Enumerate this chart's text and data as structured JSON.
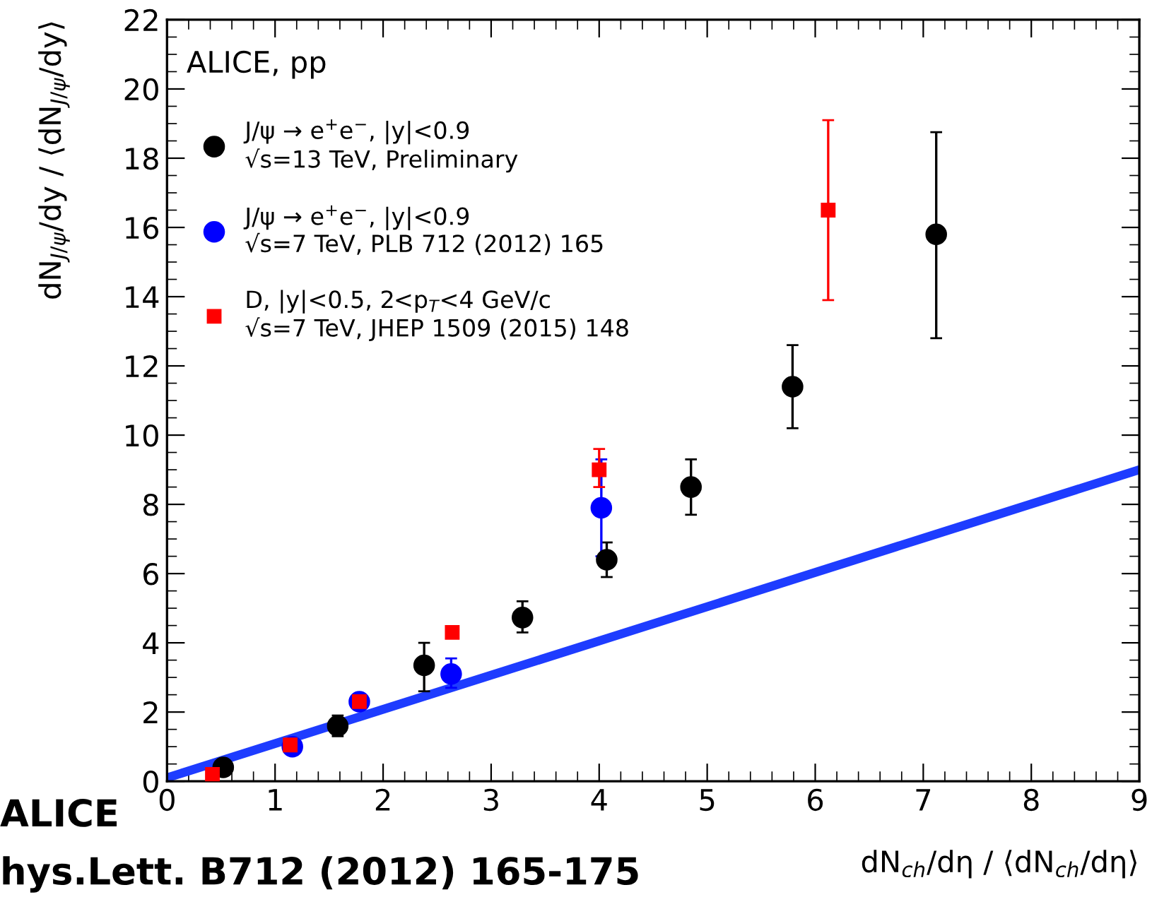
{
  "chart_data": {
    "type": "scatter",
    "xlabel": "dN$_{ch}$/dη / ⟨dN$_{ch}$/dη⟩",
    "ylabel": "dN$_{J/ψ}$/dy / ⟨dN$_{J/ψ}$/dy⟩",
    "xlim": [
      0,
      9
    ],
    "ylim": [
      0,
      22
    ],
    "xticks": [
      0,
      1,
      2,
      3,
      4,
      5,
      6,
      7,
      8,
      9
    ],
    "yticks": [
      0,
      2,
      4,
      6,
      8,
      10,
      12,
      14,
      16,
      18,
      20,
      22
    ],
    "grid": false,
    "legend": "top left",
    "annotations": [
      "ALICE, pp",
      "ALICE",
      "hys.Lett. B712 (2012) 165-175"
    ],
    "series": [
      {
        "type": "line",
        "color": "#1e3cff",
        "x": [
          0,
          9
        ],
        "values": [
          0.1,
          9.0
        ],
        "marker": "none",
        "line_style": "solid"
      },
      {
        "name": "J/ψ → e$^{+}$e$^{−}$, |y|<0.9\n√s=13 TeV, Preliminary",
        "color": "#000000",
        "marker": "circle",
        "x": [
          0.52,
          1.58,
          2.38,
          3.29,
          4.07,
          4.85,
          5.79,
          7.12
        ],
        "values": [
          0.4,
          1.6,
          3.35,
          4.73,
          6.4,
          8.5,
          11.4,
          15.8
        ],
        "errors": [
          null,
          [
            1.3,
            1.9
          ],
          [
            2.6,
            4.0
          ],
          [
            4.3,
            5.2
          ],
          [
            5.9,
            6.9
          ],
          [
            7.7,
            9.3
          ],
          [
            10.2,
            12.6
          ],
          [
            12.8,
            18.75
          ]
        ]
      },
      {
        "name": "J/ψ → e$^{+}$e$^{−}$, |y|<0.9\n√s=7 TeV, PLB 712 (2012) 165",
        "color": "#0000ff",
        "marker": "circle",
        "x": [
          1.16,
          1.78,
          2.63,
          4.02
        ],
        "values": [
          1.0,
          2.3,
          3.1,
          7.9
        ],
        "errors": [
          null,
          [
            2.1,
            2.5
          ],
          [
            2.7,
            3.55
          ],
          [
            6.5,
            9.3
          ]
        ]
      },
      {
        "name": "D, |y|<0.5, 2<p$_{T}$<4 GeV/c\n√s=7 TeV, JHEP 1509 (2015) 148",
        "color": "#ff0000",
        "marker": "square",
        "x": [
          0.42,
          1.14,
          1.78,
          2.64,
          4.0,
          6.12
        ],
        "values": [
          0.2,
          1.05,
          2.3,
          4.3,
          9.0,
          16.5
        ],
        "errors": [
          null,
          null,
          null,
          [
            4.15,
            4.45
          ],
          [
            8.5,
            9.6
          ],
          [
            13.9,
            19.1
          ]
        ]
      }
    ]
  }
}
